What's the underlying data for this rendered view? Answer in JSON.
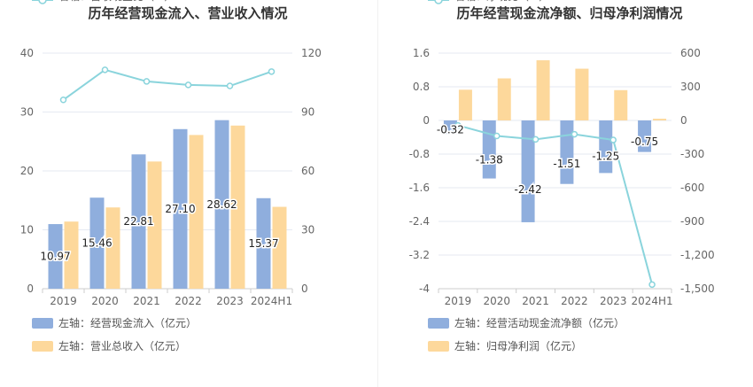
{
  "colors": {
    "bar_blue": "#8FAEDD",
    "bar_orange": "#FDD89B",
    "line": "#8AD4DC",
    "grid": "#E6EAF2",
    "axis_text": "#666666",
    "title_text": "#333333"
  },
  "chart_data": [
    {
      "type": "bar",
      "title": "历年经营现金流入、营业收入情况",
      "categories": [
        "2019",
        "2020",
        "2021",
        "2022",
        "2023",
        "2024H1"
      ],
      "y_left": {
        "ylim": [
          0,
          40
        ],
        "ticks": [
          0,
          10,
          20,
          30,
          40
        ],
        "tick_labels": [
          "0",
          "10",
          "20",
          "30",
          "40"
        ]
      },
      "y_right": {
        "ylim": [
          0,
          120
        ],
        "ticks": [
          0,
          30,
          60,
          90,
          120
        ],
        "tick_labels": [
          "0",
          "30",
          "60",
          "90",
          "120"
        ]
      },
      "series": [
        {
          "name": "左轴：经营现金流入（亿元）",
          "kind": "bar",
          "axis": "left",
          "color": "#8FAEDD",
          "values": [
            10.97,
            15.46,
            22.81,
            27.1,
            28.62,
            15.37
          ],
          "labels": [
            "10.97",
            "15.46",
            "22.81",
            "27.10",
            "28.62",
            "15.37"
          ]
        },
        {
          "name": "左轴：营业总收入（亿元）",
          "kind": "bar",
          "axis": "left",
          "color": "#FDD89B",
          "values": [
            11.4,
            13.8,
            21.6,
            26.1,
            27.7,
            13.9
          ]
        },
        {
          "name": "右轴：营收现金比（%）",
          "kind": "line",
          "axis": "right",
          "color": "#8AD4DC",
          "values": [
            96.2,
            111.5,
            105.6,
            103.8,
            103.3,
            110.6
          ]
        }
      ],
      "legend": [
        {
          "label": "左轴：经营现金流入（亿元）",
          "marker": "bar",
          "color": "#8FAEDD"
        },
        {
          "label": "左轴：营业总收入（亿元）",
          "marker": "bar",
          "color": "#FDD89B"
        },
        {
          "label": "右轴：营收现金比（%）",
          "marker": "line",
          "color": "#8AD4DC"
        }
      ]
    },
    {
      "type": "bar",
      "title": "历年经营现金流净额、归母净利润情况",
      "categories": [
        "2019",
        "2020",
        "2021",
        "2022",
        "2023",
        "2024H1"
      ],
      "y_left": {
        "ylim": [
          -4,
          1.6
        ],
        "ticks": [
          -4,
          -3.2,
          -2.4,
          -1.6,
          -0.8,
          0,
          0.8,
          1.6
        ],
        "tick_labels": [
          "-4",
          "-3.2",
          "-2.4",
          "-1.6",
          "-0.8",
          "0",
          "0.8",
          "1.6"
        ]
      },
      "y_right": {
        "ylim": [
          -1500,
          600
        ],
        "ticks": [
          -1500,
          -1200,
          -900,
          -600,
          -300,
          0,
          300,
          600
        ],
        "tick_labels": [
          "-1,500",
          "-1,200",
          "-900",
          "-600",
          "-300",
          "0",
          "300",
          "600"
        ]
      },
      "series": [
        {
          "name": "左轴：经营活动现金流净额（亿元）",
          "kind": "bar",
          "axis": "left",
          "color": "#8FAEDD",
          "values": [
            -0.32,
            -1.38,
            -2.42,
            -1.51,
            -1.25,
            -0.75
          ],
          "labels": [
            "-0.32",
            "-1.38",
            "-2.42",
            "-1.51",
            "-1.25",
            "-0.75"
          ]
        },
        {
          "name": "左轴：归母净利润（亿元）",
          "kind": "bar",
          "axis": "left",
          "color": "#FDD89B",
          "values": [
            0.73,
            1.0,
            1.43,
            1.23,
            0.72,
            0.04
          ]
        },
        {
          "name": "右轴：净现比（%）",
          "kind": "line",
          "axis": "right",
          "color": "#8AD4DC",
          "values": [
            -44,
            -138,
            -169,
            -123,
            -174,
            -1463
          ]
        }
      ],
      "legend": [
        {
          "label": "左轴：经营活动现金流净额（亿元）",
          "marker": "bar",
          "color": "#8FAEDD"
        },
        {
          "label": "左轴：归母净利润（亿元）",
          "marker": "bar",
          "color": "#FDD89B"
        },
        {
          "label": "右轴：净现比（%）",
          "marker": "line",
          "color": "#8AD4DC"
        }
      ]
    }
  ]
}
